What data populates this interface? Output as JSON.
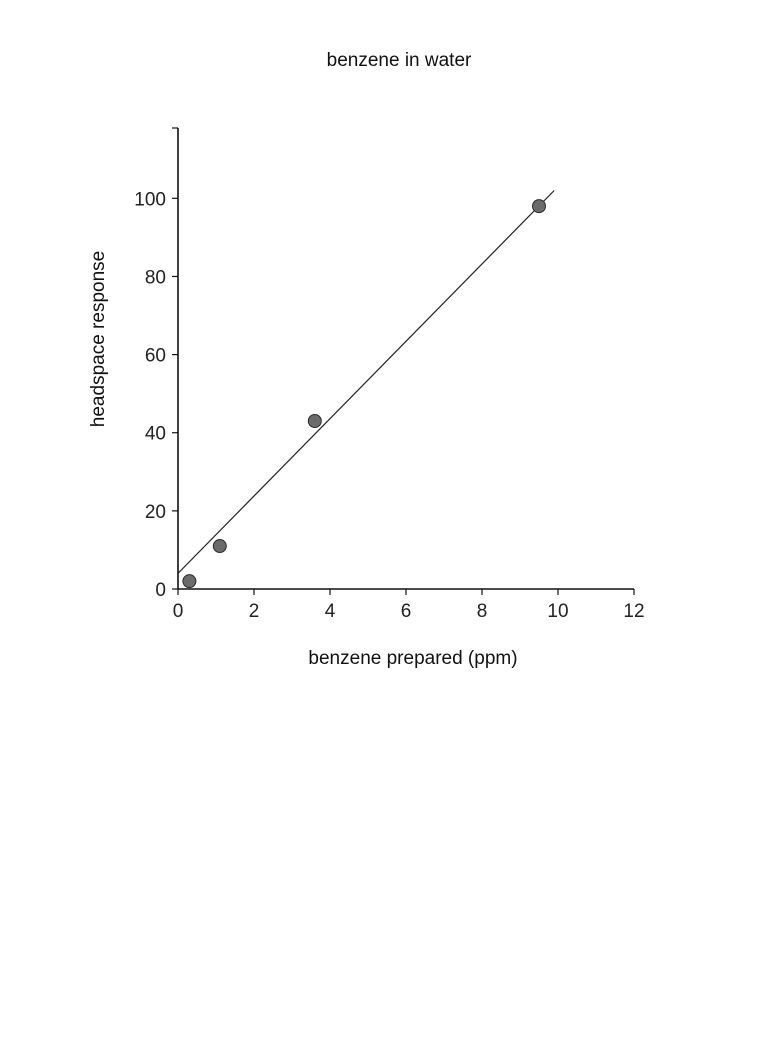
{
  "chart_data": {
    "type": "scatter",
    "title": "benzene in water",
    "xlabel": "benzene prepared (ppm)",
    "ylabel": "headspace response",
    "xlim": [
      0,
      12
    ],
    "ylim": [
      0,
      118
    ],
    "xticks": [
      0,
      2,
      4,
      6,
      8,
      10,
      12
    ],
    "yticks": [
      0,
      20,
      40,
      60,
      80,
      100
    ],
    "grid": false,
    "series": [
      {
        "points": [
          {
            "x": 0.3,
            "y": 2
          },
          {
            "x": 1.1,
            "y": 11
          },
          {
            "x": 3.6,
            "y": 43
          },
          {
            "x": 9.5,
            "y": 98
          }
        ]
      }
    ],
    "fit_line": {
      "x": [
        0,
        9.9
      ],
      "y": [
        4,
        102
      ]
    },
    "colors": {
      "marker": "#6b6b6b",
      "marker_edge": "#2a2a2a",
      "axis": "#111111"
    }
  }
}
